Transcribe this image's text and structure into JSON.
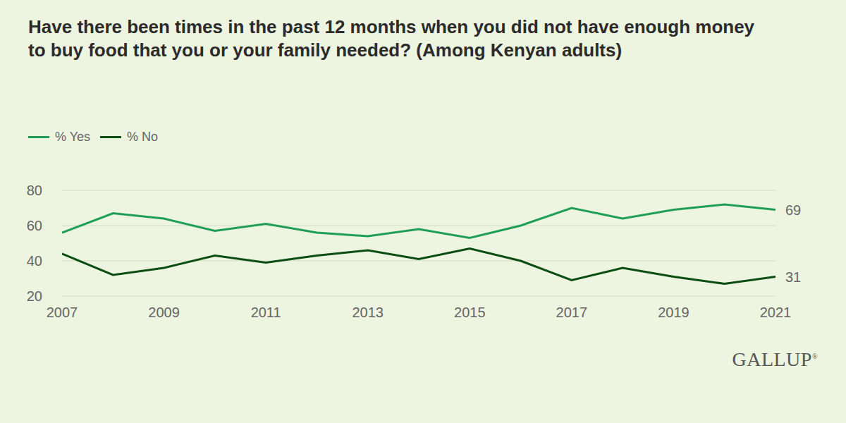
{
  "chart_data": {
    "type": "line",
    "title": "Have there been times in the past 12 months when you did not have enough money to buy food that you or your family needed? (Among Kenyan adults)",
    "x": [
      2007,
      2008,
      2009,
      2010,
      2011,
      2012,
      2013,
      2014,
      2015,
      2016,
      2017,
      2018,
      2019,
      2020,
      2021
    ],
    "series": [
      {
        "name": "% Yes",
        "color": "#1f9e55",
        "values": [
          56,
          67,
          64,
          57,
          61,
          56,
          54,
          58,
          53,
          60,
          70,
          64,
          69,
          72,
          69
        ]
      },
      {
        "name": "% No",
        "color": "#0b4d12",
        "values": [
          44,
          32,
          36,
          43,
          39,
          43,
          46,
          41,
          47,
          40,
          29,
          36,
          31,
          27,
          31
        ]
      }
    ],
    "xlim": [
      2007,
      2021
    ],
    "xticks": [
      2007,
      2009,
      2011,
      2013,
      2015,
      2017,
      2019,
      2021
    ],
    "ylim": [
      20,
      80
    ],
    "yticks": [
      20,
      40,
      60,
      80
    ],
    "grid": true,
    "legend": "top left",
    "annotations": [
      {
        "x": 2021,
        "y": 69,
        "text": "69"
      },
      {
        "x": 2021,
        "y": 31,
        "text": "31"
      }
    ],
    "source": "GALLUP®"
  }
}
